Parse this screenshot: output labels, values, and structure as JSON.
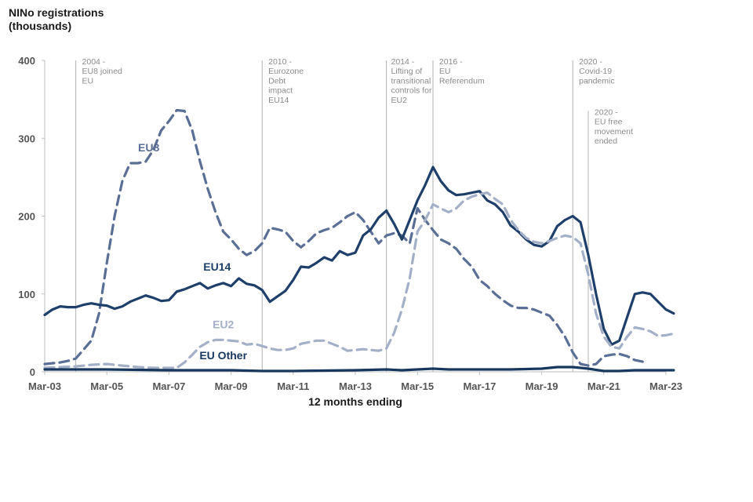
{
  "chart_data": {
    "type": "line",
    "ylabel": [
      "NINo registrations",
      "(thousands)"
    ],
    "xlabel": "12 months ending",
    "ylim": [
      0,
      400
    ],
    "yticks": [
      "0",
      "100",
      "200",
      "300",
      "400"
    ],
    "x_range": [
      2003.25,
      2023.25
    ],
    "x_ticks": [
      {
        "label": "Mar-03",
        "t": 2003.25
      },
      {
        "label": "Mar-05",
        "t": 2005.25
      },
      {
        "label": "Mar-07",
        "t": 2007.25
      },
      {
        "label": "Mar-09",
        "t": 2009.25
      },
      {
        "label": "Mar-11",
        "t": 2011.25
      },
      {
        "label": "Mar-13",
        "t": 2013.25
      },
      {
        "label": "Mar-15",
        "t": 2015.25
      },
      {
        "label": "Mar-17",
        "t": 2017.25
      },
      {
        "label": "Mar-19",
        "t": 2019.25
      },
      {
        "label": "Mar-21",
        "t": 2021.25
      },
      {
        "label": "Mar-23",
        "t": 2023.25
      }
    ],
    "events": [
      {
        "t": 2004.25,
        "label_t": 2004.45,
        "y_top": 400,
        "lines": [
          "2004 -",
          "EU8 joined",
          "EU"
        ]
      },
      {
        "t": 2010.25,
        "label_t": 2010.45,
        "y_top": 400,
        "lines": [
          "2010 -",
          "Eurozone",
          "Debt",
          "impact",
          "EU14"
        ]
      },
      {
        "t": 2014.25,
        "label_t": 2014.4,
        "y_top": 400,
        "lines": [
          "2014 -",
          "Lifting of",
          "transitional",
          "controls for",
          "EU2"
        ]
      },
      {
        "t": 2015.75,
        "label_t": 2015.95,
        "y_top": 400,
        "lines": [
          "2016 -",
          "EU",
          "Referendum"
        ]
      },
      {
        "t": 2020.25,
        "label_t": 2020.45,
        "y_top": 400,
        "lines": [
          "2020 -",
          "Covid-19",
          "pandemic"
        ]
      },
      {
        "t": 2020.75,
        "label_t": 2020.95,
        "y_top": 335,
        "lines": [
          "2020 -",
          "EU free",
          "movement",
          "ended"
        ]
      }
    ],
    "series": [
      {
        "name": "EU8",
        "color": "#5b6f96",
        "dash": "dashed",
        "label_at": {
          "t": 2006.6,
          "v": 283
        },
        "points": [
          [
            2003.25,
            10
          ],
          [
            2003.75,
            12
          ],
          [
            2004.0,
            14
          ],
          [
            2004.25,
            17
          ],
          [
            2004.75,
            40
          ],
          [
            2005.0,
            75
          ],
          [
            2005.25,
            140
          ],
          [
            2005.5,
            200
          ],
          [
            2005.75,
            245
          ],
          [
            2006.0,
            268
          ],
          [
            2006.25,
            268
          ],
          [
            2006.5,
            270
          ],
          [
            2006.75,
            285
          ],
          [
            2007.0,
            310
          ],
          [
            2007.25,
            322
          ],
          [
            2007.5,
            336
          ],
          [
            2007.75,
            335
          ],
          [
            2008.0,
            310
          ],
          [
            2008.25,
            270
          ],
          [
            2008.5,
            235
          ],
          [
            2008.75,
            205
          ],
          [
            2009.0,
            180
          ],
          [
            2009.25,
            170
          ],
          [
            2009.5,
            158
          ],
          [
            2009.75,
            150
          ],
          [
            2010.0,
            155
          ],
          [
            2010.25,
            165
          ],
          [
            2010.5,
            185
          ],
          [
            2010.75,
            183
          ],
          [
            2011.0,
            180
          ],
          [
            2011.25,
            168
          ],
          [
            2011.5,
            160
          ],
          [
            2011.75,
            168
          ],
          [
            2012.0,
            178
          ],
          [
            2012.25,
            182
          ],
          [
            2012.5,
            185
          ],
          [
            2012.75,
            192
          ],
          [
            2013.0,
            200
          ],
          [
            2013.25,
            205
          ],
          [
            2013.5,
            195
          ],
          [
            2013.75,
            180
          ],
          [
            2014.0,
            165
          ],
          [
            2014.25,
            175
          ],
          [
            2014.5,
            178
          ],
          [
            2014.75,
            175
          ],
          [
            2015.0,
            165
          ],
          [
            2015.25,
            210
          ],
          [
            2015.5,
            195
          ],
          [
            2015.75,
            182
          ],
          [
            2016.0,
            170
          ],
          [
            2016.25,
            165
          ],
          [
            2016.5,
            158
          ],
          [
            2016.75,
            145
          ],
          [
            2017.0,
            135
          ],
          [
            2017.25,
            118
          ],
          [
            2017.5,
            110
          ],
          [
            2017.75,
            100
          ],
          [
            2018.0,
            92
          ],
          [
            2018.25,
            85
          ],
          [
            2018.5,
            82
          ],
          [
            2018.75,
            82
          ],
          [
            2019.0,
            80
          ],
          [
            2019.25,
            76
          ],
          [
            2019.5,
            72
          ],
          [
            2019.75,
            60
          ],
          [
            2020.0,
            45
          ],
          [
            2020.25,
            25
          ],
          [
            2020.5,
            10
          ],
          [
            2020.75,
            8
          ],
          [
            2021.0,
            10
          ],
          [
            2021.25,
            20
          ],
          [
            2021.5,
            22
          ],
          [
            2021.75,
            23
          ],
          [
            2022.0,
            20
          ],
          [
            2022.25,
            15
          ],
          [
            2022.5,
            13
          ]
        ]
      },
      {
        "name": "EU14",
        "color": "#1f3f6b",
        "dash": "solid",
        "label_at": {
          "t": 2008.8,
          "v": 130
        },
        "points": [
          [
            2003.25,
            73
          ],
          [
            2003.5,
            80
          ],
          [
            2003.75,
            84
          ],
          [
            2004.0,
            83
          ],
          [
            2004.25,
            83
          ],
          [
            2004.5,
            86
          ],
          [
            2004.75,
            88
          ],
          [
            2005.0,
            86
          ],
          [
            2005.25,
            85
          ],
          [
            2005.5,
            81
          ],
          [
            2005.75,
            84
          ],
          [
            2006.0,
            90
          ],
          [
            2006.25,
            94
          ],
          [
            2006.5,
            98
          ],
          [
            2006.75,
            95
          ],
          [
            2007.0,
            91
          ],
          [
            2007.25,
            92
          ],
          [
            2007.5,
            103
          ],
          [
            2007.75,
            106
          ],
          [
            2008.0,
            110
          ],
          [
            2008.25,
            114
          ],
          [
            2008.5,
            107
          ],
          [
            2008.75,
            111
          ],
          [
            2009.0,
            114
          ],
          [
            2009.25,
            110
          ],
          [
            2009.5,
            120
          ],
          [
            2009.75,
            113
          ],
          [
            2010.0,
            111
          ],
          [
            2010.25,
            105
          ],
          [
            2010.5,
            90
          ],
          [
            2010.75,
            97
          ],
          [
            2011.0,
            104
          ],
          [
            2011.25,
            118
          ],
          [
            2011.5,
            135
          ],
          [
            2011.75,
            134
          ],
          [
            2012.0,
            140
          ],
          [
            2012.25,
            147
          ],
          [
            2012.5,
            143
          ],
          [
            2012.75,
            155
          ],
          [
            2013.0,
            150
          ],
          [
            2013.25,
            153
          ],
          [
            2013.5,
            175
          ],
          [
            2013.75,
            183
          ],
          [
            2014.0,
            198
          ],
          [
            2014.25,
            207
          ],
          [
            2014.5,
            190
          ],
          [
            2014.75,
            170
          ],
          [
            2015.0,
            195
          ],
          [
            2015.25,
            220
          ],
          [
            2015.5,
            240
          ],
          [
            2015.75,
            263
          ],
          [
            2016.0,
            245
          ],
          [
            2016.25,
            233
          ],
          [
            2016.5,
            227
          ],
          [
            2016.75,
            228
          ],
          [
            2017.0,
            230
          ],
          [
            2017.25,
            232
          ],
          [
            2017.5,
            220
          ],
          [
            2017.75,
            215
          ],
          [
            2018.0,
            205
          ],
          [
            2018.25,
            188
          ],
          [
            2018.5,
            180
          ],
          [
            2018.75,
            170
          ],
          [
            2019.0,
            163
          ],
          [
            2019.25,
            161
          ],
          [
            2019.5,
            168
          ],
          [
            2019.75,
            187
          ],
          [
            2020.0,
            195
          ],
          [
            2020.25,
            200
          ],
          [
            2020.5,
            192
          ],
          [
            2020.75,
            150
          ],
          [
            2021.0,
            100
          ],
          [
            2021.25,
            55
          ],
          [
            2021.5,
            35
          ],
          [
            2021.75,
            40
          ],
          [
            2022.0,
            70
          ],
          [
            2022.25,
            100
          ],
          [
            2022.5,
            102
          ],
          [
            2022.75,
            100
          ],
          [
            2023.0,
            90
          ],
          [
            2023.25,
            80
          ],
          [
            2023.5,
            75
          ]
        ]
      },
      {
        "name": "EU2",
        "color": "#a4b0c8",
        "dash": "dashed",
        "label_at": {
          "t": 2009.0,
          "v": 56
        },
        "points": [
          [
            2003.25,
            5
          ],
          [
            2003.75,
            6
          ],
          [
            2004.25,
            7
          ],
          [
            2004.75,
            9
          ],
          [
            2005.25,
            10
          ],
          [
            2005.75,
            8
          ],
          [
            2006.25,
            6
          ],
          [
            2006.75,
            5
          ],
          [
            2007.25,
            5
          ],
          [
            2007.5,
            5
          ],
          [
            2007.75,
            12
          ],
          [
            2008.0,
            22
          ],
          [
            2008.25,
            32
          ],
          [
            2008.5,
            38
          ],
          [
            2008.75,
            41
          ],
          [
            2009.0,
            41
          ],
          [
            2009.25,
            40
          ],
          [
            2009.5,
            39
          ],
          [
            2009.75,
            35
          ],
          [
            2010.0,
            36
          ],
          [
            2010.25,
            33
          ],
          [
            2010.5,
            30
          ],
          [
            2010.75,
            28
          ],
          [
            2011.0,
            28
          ],
          [
            2011.25,
            30
          ],
          [
            2011.5,
            36
          ],
          [
            2011.75,
            38
          ],
          [
            2012.0,
            40
          ],
          [
            2012.25,
            40
          ],
          [
            2012.5,
            36
          ],
          [
            2012.75,
            32
          ],
          [
            2013.0,
            27
          ],
          [
            2013.25,
            28
          ],
          [
            2013.5,
            29
          ],
          [
            2013.75,
            28
          ],
          [
            2014.0,
            27
          ],
          [
            2014.25,
            30
          ],
          [
            2014.5,
            50
          ],
          [
            2014.75,
            80
          ],
          [
            2015.0,
            120
          ],
          [
            2015.25,
            180
          ],
          [
            2015.5,
            195
          ],
          [
            2015.75,
            215
          ],
          [
            2016.0,
            210
          ],
          [
            2016.25,
            205
          ],
          [
            2016.5,
            210
          ],
          [
            2016.75,
            220
          ],
          [
            2017.0,
            225
          ],
          [
            2017.25,
            228
          ],
          [
            2017.5,
            230
          ],
          [
            2017.75,
            222
          ],
          [
            2018.0,
            215
          ],
          [
            2018.25,
            195
          ],
          [
            2018.5,
            182
          ],
          [
            2018.75,
            172
          ],
          [
            2019.0,
            167
          ],
          [
            2019.25,
            165
          ],
          [
            2019.5,
            168
          ],
          [
            2019.75,
            172
          ],
          [
            2020.0,
            175
          ],
          [
            2020.25,
            173
          ],
          [
            2020.5,
            165
          ],
          [
            2020.75,
            125
          ],
          [
            2021.0,
            75
          ],
          [
            2021.25,
            45
          ],
          [
            2021.5,
            32
          ],
          [
            2021.75,
            30
          ],
          [
            2022.0,
            45
          ],
          [
            2022.25,
            57
          ],
          [
            2022.5,
            55
          ],
          [
            2022.75,
            52
          ],
          [
            2023.0,
            46
          ],
          [
            2023.25,
            47
          ],
          [
            2023.5,
            49
          ]
        ]
      },
      {
        "name": "EU Other",
        "color": "#17375e",
        "dash": "solid",
        "label_at": {
          "t": 2009.0,
          "v": 16
        },
        "points": [
          [
            2003.25,
            3
          ],
          [
            2005.25,
            3
          ],
          [
            2007.25,
            2
          ],
          [
            2009.25,
            2
          ],
          [
            2010.25,
            1
          ],
          [
            2011.25,
            1
          ],
          [
            2013.25,
            2
          ],
          [
            2014.25,
            3
          ],
          [
            2014.75,
            2
          ],
          [
            2015.25,
            3
          ],
          [
            2015.75,
            4
          ],
          [
            2016.25,
            3
          ],
          [
            2017.25,
            3
          ],
          [
            2018.25,
            3
          ],
          [
            2019.25,
            4
          ],
          [
            2019.75,
            6
          ],
          [
            2020.25,
            6
          ],
          [
            2020.75,
            4
          ],
          [
            2021.25,
            1
          ],
          [
            2021.75,
            1
          ],
          [
            2022.25,
            2
          ],
          [
            2023.25,
            2
          ],
          [
            2023.5,
            2
          ]
        ]
      }
    ]
  }
}
